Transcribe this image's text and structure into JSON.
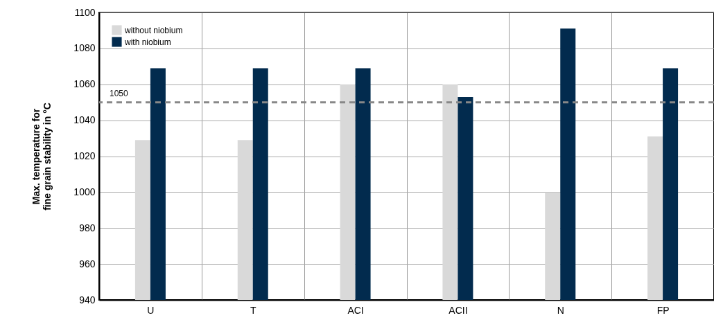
{
  "chart_data": {
    "type": "bar",
    "ylabel": "Max. temperature for\nfine grain stability in °C",
    "categories": [
      "U",
      "T",
      "ACI",
      "ACII",
      "N",
      "FP"
    ],
    "series": [
      {
        "name": "without niobium",
        "color": "#d9d9d9",
        "values": [
          1029,
          1029,
          1060,
          1060,
          1000,
          1031
        ]
      },
      {
        "name": "with niobium",
        "color": "#022b4e",
        "values": [
          1069,
          1069,
          1069,
          1053,
          1091,
          1069
        ]
      }
    ],
    "ylim": [
      940,
      1100
    ],
    "yticks": [
      940,
      960,
      980,
      1000,
      1020,
      1040,
      1060,
      1080,
      1100
    ],
    "grid": true,
    "legend": "top left",
    "ref_lines": [
      {
        "axis": "y",
        "value": 1050,
        "label": "1050",
        "color": "#888888",
        "line_style": "dashed"
      }
    ]
  }
}
